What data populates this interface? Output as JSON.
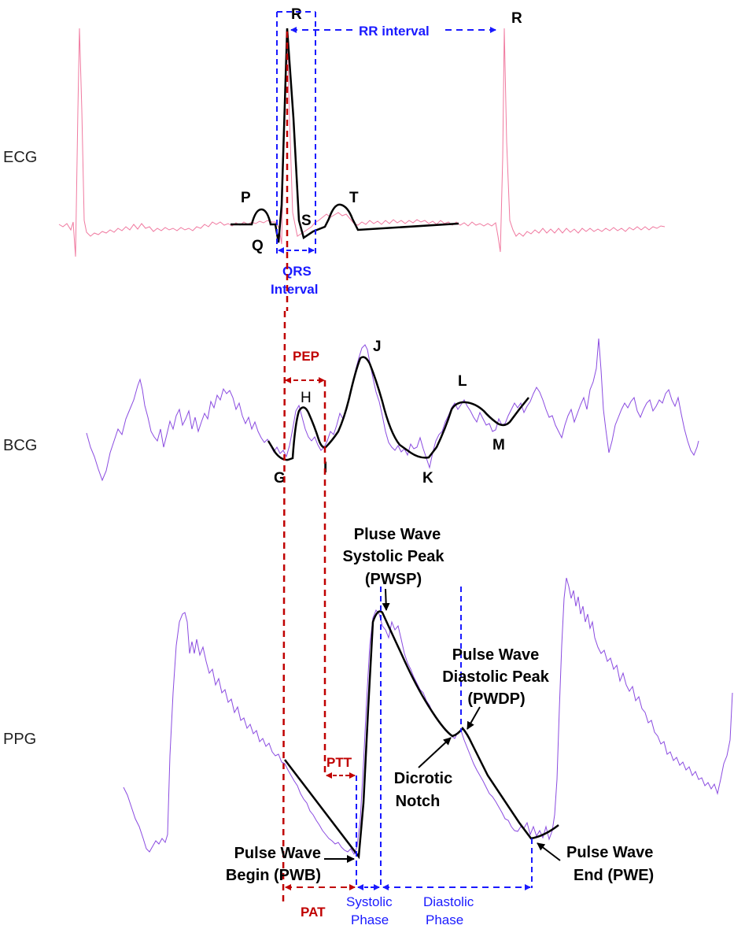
{
  "signals": {
    "ecg": "ECG",
    "bcg": "BCG",
    "ppg": "PPG"
  },
  "ecg_points": {
    "r1": "R",
    "r2": "R",
    "p": "P",
    "q": "Q",
    "s": "S",
    "t": "T"
  },
  "ecg_intervals": {
    "rr": "RR interval",
    "qrs_line1": "QRS",
    "qrs_line2": "Interval"
  },
  "bcg_points": {
    "h": "H",
    "j": "J",
    "l": "L",
    "g": "G",
    "i": "I",
    "k": "K",
    "m": "M"
  },
  "bcg_intervals": {
    "pep": "PEP"
  },
  "ppg_annotations": {
    "pwsp": [
      "Pluse Wave",
      "Systolic Peak",
      "(PWSP)"
    ],
    "pwdp": [
      "Pulse Wave",
      "Diastolic Peak",
      "(PWDP)"
    ],
    "dicrotic": [
      "Dicrotic",
      "Notch"
    ],
    "pwb": [
      "Pulse Wave",
      "Begin (PWB)"
    ],
    "pwe": [
      "Pulse Wave",
      "End (PWE)"
    ]
  },
  "ppg_intervals": {
    "ptt": "PTT",
    "pat": "PAT",
    "systolic": [
      "Systolic",
      "Phase"
    ],
    "diastolic": [
      "Diastolic",
      "Phase"
    ]
  },
  "colors": {
    "ecg_trace": "#f07aa0",
    "bio_trace": "#8a4be0",
    "blue_marker": "#1a1aff",
    "red_marker": "#c00000",
    "black_template": "#000000"
  }
}
